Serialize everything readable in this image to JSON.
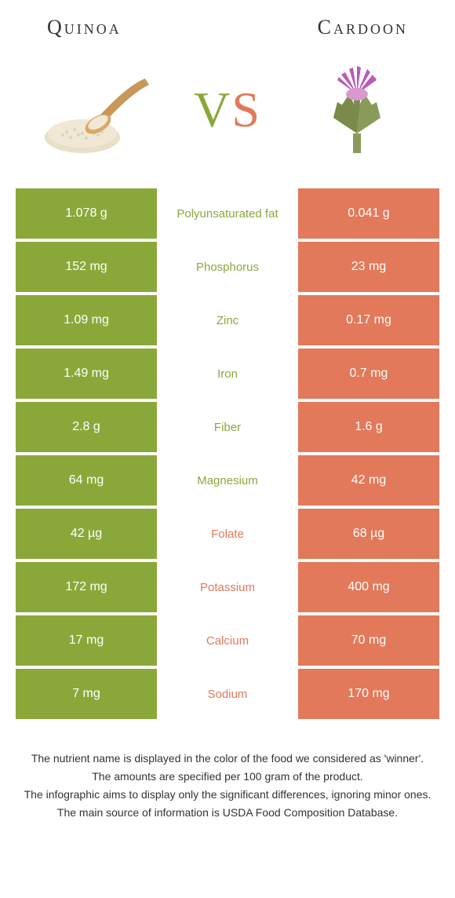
{
  "colors": {
    "green": "#8aa83a",
    "orange": "#e2795a",
    "text": "#333333"
  },
  "header": {
    "left": "Quinoa",
    "right": "Cardoon",
    "vs_v": "V",
    "vs_s": "S"
  },
  "rows": [
    {
      "left": "1.078 g",
      "mid": "Polyunsaturated fat",
      "right": "0.041 g",
      "winner": "left"
    },
    {
      "left": "152 mg",
      "mid": "Phosphorus",
      "right": "23 mg",
      "winner": "left"
    },
    {
      "left": "1.09 mg",
      "mid": "Zinc",
      "right": "0.17 mg",
      "winner": "left"
    },
    {
      "left": "1.49 mg",
      "mid": "Iron",
      "right": "0.7 mg",
      "winner": "left"
    },
    {
      "left": "2.8 g",
      "mid": "Fiber",
      "right": "1.6 g",
      "winner": "left"
    },
    {
      "left": "64 mg",
      "mid": "Magnesium",
      "right": "42 mg",
      "winner": "left"
    },
    {
      "left": "42 µg",
      "mid": "Folate",
      "right": "68 µg",
      "winner": "right"
    },
    {
      "left": "172 mg",
      "mid": "Potassium",
      "right": "400 mg",
      "winner": "right"
    },
    {
      "left": "17 mg",
      "mid": "Calcium",
      "right": "70 mg",
      "winner": "right"
    },
    {
      "left": "7 mg",
      "mid": "Sodium",
      "right": "170 mg",
      "winner": "right"
    }
  ],
  "footnotes": [
    "The nutrient name is displayed in the color of the food we considered as 'winner'.",
    "The amounts are specified per 100 gram of the product.",
    "The infographic aims to display only the significant differences, ignoring minor ones.",
    "The main source of information is USDA Food Composition Database."
  ]
}
